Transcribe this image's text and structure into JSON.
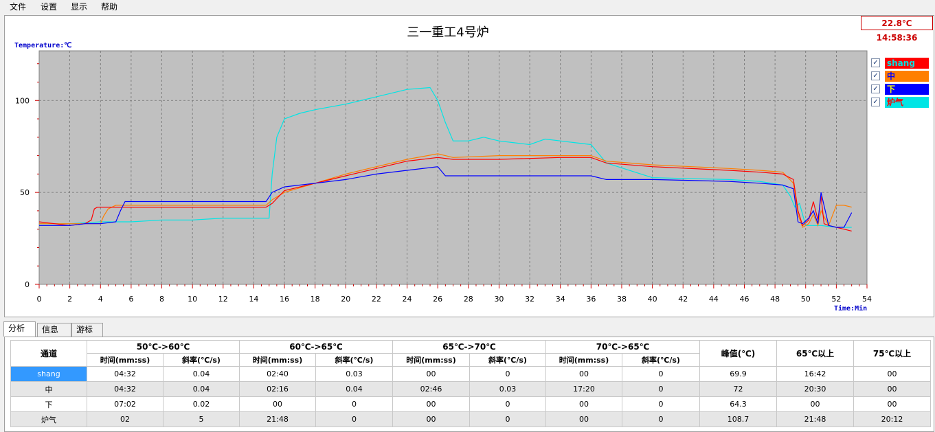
{
  "menu": {
    "items": [
      "文件",
      "设置",
      "显示",
      "帮助"
    ]
  },
  "clock": "22.8℃ 14:58:36",
  "chart_data": {
    "type": "line",
    "title": "三一重工4号炉",
    "ylabel": "Temperature:℃",
    "xlabel": "Time:Min",
    "xlim": [
      0,
      54
    ],
    "ylim": [
      0,
      127
    ],
    "x_ticks": [
      0,
      2,
      4,
      6,
      8,
      10,
      12,
      14,
      16,
      18,
      20,
      22,
      24,
      26,
      28,
      30,
      32,
      34,
      36,
      38,
      40,
      42,
      44,
      46,
      48,
      50,
      52,
      54
    ],
    "y_ticks": [
      0,
      50,
      100
    ],
    "grid": true,
    "legend_placement": "right",
    "series": [
      {
        "name": "shang",
        "color": "#ff0000",
        "x": [
          0,
          1,
          2,
          3,
          3.4,
          3.6,
          3.8,
          5,
          10,
          14,
          14.8,
          15.2,
          16,
          18,
          20,
          22,
          24,
          26,
          27,
          30,
          34,
          36,
          37,
          40,
          45,
          47,
          48.5,
          49.2,
          49.5,
          49.8,
          50.2,
          50.5,
          50.8,
          51,
          51.2,
          51.5,
          52,
          52.5,
          53
        ],
        "y": [
          34,
          33,
          32,
          33,
          35,
          41,
          42,
          42,
          42,
          42,
          42,
          44,
          51,
          55,
          59,
          63,
          67,
          69,
          68,
          68,
          69,
          69,
          66,
          64,
          62,
          61,
          60,
          57,
          40,
          32,
          35,
          45,
          35,
          48,
          33,
          32,
          31,
          30,
          29
        ]
      },
      {
        "name": "中",
        "color": "#ff7f00",
        "x": [
          0,
          1,
          2,
          3,
          4,
          4.2,
          4.5,
          5,
          10,
          14,
          14.8,
          15.2,
          16,
          18,
          20,
          22,
          24,
          26,
          27,
          30,
          34,
          36,
          37,
          40,
          45,
          47,
          48.5,
          49.2,
          49.5,
          49.8,
          50.2,
          50.5,
          50.8,
          51,
          51.5,
          52,
          52.5,
          53
        ],
        "y": [
          33,
          33,
          33,
          33,
          33,
          37,
          41,
          43,
          43,
          43,
          43,
          46,
          50,
          55,
          60,
          64,
          68,
          71,
          69,
          70,
          70,
          70,
          67,
          65,
          63,
          62,
          61,
          55,
          38,
          31,
          33,
          38,
          32,
          40,
          32,
          43,
          43,
          42
        ]
      },
      {
        "name": "下",
        "color": "#0000ff",
        "x": [
          0,
          1,
          2,
          3,
          4,
          5,
          5.3,
          5.6,
          10,
          14,
          14.8,
          15.2,
          16,
          18,
          20,
          22,
          24,
          26,
          26.5,
          30,
          34,
          36,
          37,
          40,
          45,
          47,
          48.5,
          49.2,
          49.5,
          49.8,
          50.2,
          50.5,
          50.8,
          51,
          51.5,
          52,
          52.5,
          53
        ],
        "y": [
          32,
          32,
          32,
          33,
          33,
          34,
          40,
          45,
          45,
          45,
          45,
          50,
          53,
          55,
          57,
          60,
          62,
          64,
          59,
          59,
          59,
          59,
          57,
          57,
          56,
          55,
          54,
          52,
          34,
          33,
          36,
          40,
          33,
          50,
          32,
          31,
          31,
          39
        ]
      },
      {
        "name": "炉气",
        "color": "#00e5e5",
        "x": [
          0,
          2,
          4,
          6,
          8,
          10,
          12,
          14,
          15,
          15.2,
          15.5,
          16,
          17,
          18,
          20,
          22,
          24,
          25.5,
          26,
          26.5,
          27,
          28,
          29,
          30,
          31,
          32,
          33,
          34,
          35,
          36,
          36.5,
          37,
          40,
          45,
          47,
          48.5,
          49,
          49.3,
          49.6,
          50,
          51,
          52,
          53
        ],
        "y": [
          33,
          33,
          34,
          34,
          35,
          35,
          36,
          36,
          36,
          60,
          80,
          90,
          93,
          95,
          98,
          102,
          106,
          107,
          100,
          88,
          78,
          78,
          80,
          78,
          77,
          76,
          79,
          78,
          77,
          76,
          71,
          66,
          58,
          57,
          56,
          54,
          48,
          42,
          44,
          32,
          32,
          31,
          31
        ]
      }
    ]
  },
  "legend": {
    "checked_symbol": "✓",
    "items": [
      {
        "label": "shang",
        "bg": "#ff0000",
        "fg": "#00e5e5"
      },
      {
        "label": "中",
        "bg": "#ff7f00",
        "fg": "#0000ff"
      },
      {
        "label": "下",
        "bg": "#0000ff",
        "fg": "#ffff00"
      },
      {
        "label": "炉气",
        "bg": "#00e5e5",
        "fg": "#ff0000"
      }
    ]
  },
  "tabs": [
    "分析",
    "信息",
    "游标"
  ],
  "table": {
    "channel_header": "通道",
    "groups": [
      "50℃->60℃",
      "60℃->65℃",
      "65℃->70℃",
      "70℃->65℃"
    ],
    "sub_headers": [
      "时间(mm:ss)",
      "斜率(℃/s)"
    ],
    "extra_headers": [
      "峰值(℃)",
      "65℃以上",
      "75℃以上"
    ],
    "rows": [
      [
        "shang",
        "04:32",
        "0.04",
        "02:40",
        "0.03",
        "00",
        "0",
        "00",
        "0",
        "69.9",
        "16:42",
        "00"
      ],
      [
        "中",
        "04:32",
        "0.04",
        "02:16",
        "0.04",
        "02:46",
        "0.03",
        "17:20",
        "0",
        "72",
        "20:30",
        "00"
      ],
      [
        "下",
        "07:02",
        "0.02",
        "00",
        "0",
        "00",
        "0",
        "00",
        "0",
        "64.3",
        "00",
        "00"
      ],
      [
        "炉气",
        "02",
        "5",
        "21:48",
        "0",
        "00",
        "0",
        "00",
        "0",
        "108.7",
        "21:48",
        "20:12"
      ]
    ]
  }
}
